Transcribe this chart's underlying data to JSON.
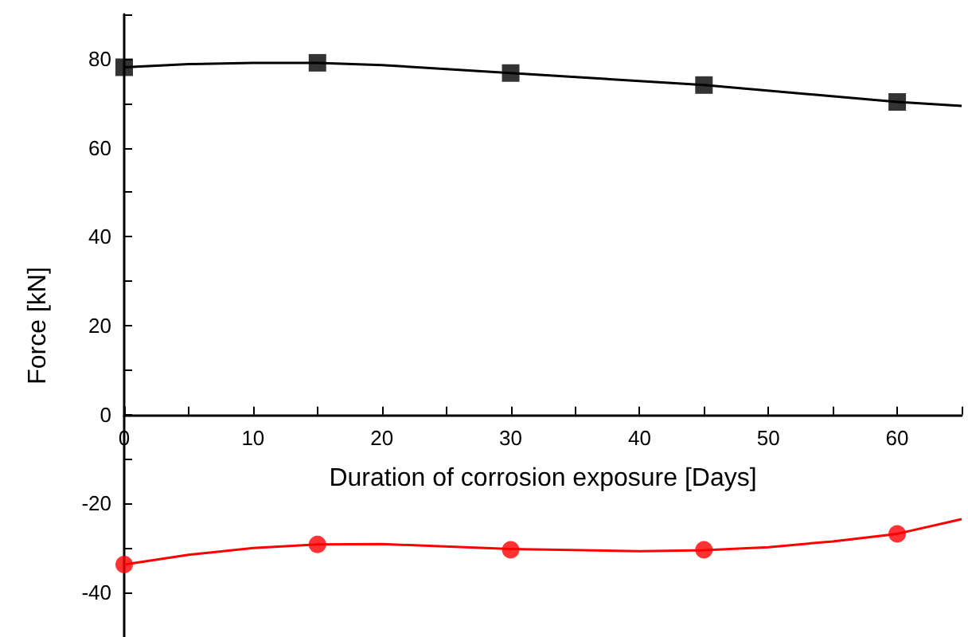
{
  "chart_data": {
    "type": "scatter",
    "xlabel": "Duration of corrosion exposure [Days]",
    "ylabel": "Force [kN]",
    "xlim": [
      0,
      65
    ],
    "ylim": [
      -50,
      90
    ],
    "xticks": [
      0,
      {
        "value": 5,
        "label": null
      },
      10,
      {
        "value": 15,
        "label": null
      },
      20,
      {
        "value": 25,
        "label": null
      },
      30,
      {
        "value": 35,
        "label": null
      },
      40,
      {
        "value": 45,
        "label": null
      },
      50,
      {
        "value": 55,
        "label": null
      },
      60,
      {
        "value": 65,
        "label": null
      }
    ],
    "yticks": [
      {
        "value": -50,
        "label": null
      },
      -40,
      {
        "value": -30,
        "label": null
      },
      -20,
      {
        "value": -10,
        "label": null
      },
      0,
      {
        "value": 10,
        "label": null
      },
      20,
      {
        "value": 30,
        "label": null
      },
      40,
      {
        "value": 50,
        "label": null
      },
      60,
      {
        "value": 70,
        "label": null
      },
      80,
      {
        "value": 90,
        "label": null
      }
    ],
    "grid": false,
    "series": [
      {
        "type": "line",
        "color": "#000000",
        "marker": "none",
        "x": [
          0,
          5,
          10,
          15,
          20,
          30,
          45,
          60,
          65
        ],
        "values": [
          78.1,
          78.8,
          79.1,
          79.1,
          78.6,
          76.8,
          74.1,
          70.3,
          69.4
        ]
      },
      {
        "type": "line",
        "color": "#ff0000",
        "marker": "none",
        "x": [
          0,
          5,
          10,
          15,
          20,
          30,
          40,
          45,
          50,
          55,
          60,
          65
        ],
        "values": [
          -33.7,
          -31.5,
          -30,
          -29.2,
          -29.1,
          -30.2,
          -30.7,
          -30.5,
          -29.8,
          -28.5,
          -26.8,
          -23.5
        ]
      },
      {
        "color": "#000000",
        "marker": "square",
        "x": [
          0,
          15,
          30,
          45,
          60
        ],
        "values": [
          78.1,
          79.1,
          76.8,
          74.1,
          70.3
        ]
      },
      {
        "color": "#ff0000",
        "marker": "circle",
        "x": [
          0,
          15,
          30,
          45,
          60
        ],
        "values": [
          -33.7,
          -29.2,
          -30.4,
          -30.4,
          -26.8
        ]
      }
    ]
  }
}
